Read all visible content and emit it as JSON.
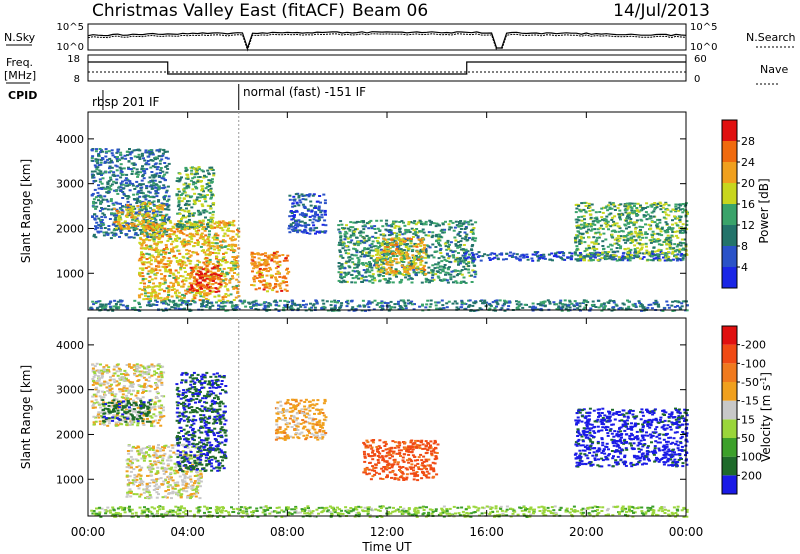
{
  "header": {
    "title": "Christmas Valley East (fitACF)",
    "beam": "Beam 06",
    "date": "14/Jul/2013"
  },
  "top_panels": {
    "nsky_label": "N.Sky",
    "nsearch_label": "N.Search",
    "count_ticks_left": [
      "10^5",
      "10^0"
    ],
    "count_ticks_right": [
      "10^5",
      "10^0"
    ],
    "freq_label_1": "Freq.",
    "freq_label_2": "[MHz]",
    "freq_ticks": [
      "18",
      "8"
    ],
    "nave_label": "Nave",
    "nave_ticks": [
      "60",
      "0"
    ],
    "cpid_label": "CPID",
    "cpid_modes": [
      "rbsp 201 IF",
      "normal (fast) -151 IF"
    ],
    "cpid_switch_hours": [
      0.6,
      6.05
    ]
  },
  "chart_data": [
    {
      "type": "heatmap",
      "name": "power",
      "ylabel": "Slant Range [km]",
      "ylim": [
        180,
        4600
      ],
      "xlim": [
        0,
        24
      ],
      "yticks": [
        1000,
        2000,
        3000,
        4000
      ],
      "colorbar": {
        "label": "Power [dB]",
        "ticks": [
          4,
          8,
          12,
          16,
          20,
          24,
          28
        ],
        "levels": [
          0,
          4,
          8,
          12,
          16,
          20,
          24,
          28,
          32
        ],
        "colors": [
          "#1a26e6",
          "#2a52c8",
          "#23736a",
          "#3aa36a",
          "#c8d61e",
          "#f0a01e",
          "#f06a0e",
          "#e01010"
        ]
      },
      "regions": [
        {
          "t": [
            0.1,
            3.2
          ],
          "r": [
            1800,
            3800
          ],
          "v": 9
        },
        {
          "t": [
            1.0,
            3.0
          ],
          "r": [
            2000,
            2600
          ],
          "v": 20
        },
        {
          "t": [
            2.0,
            6.0
          ],
          "r": [
            400,
            2200
          ],
          "v": 20
        },
        {
          "t": [
            3.5,
            5.0
          ],
          "r": [
            2000,
            3400
          ],
          "v": 14
        },
        {
          "t": [
            4.0,
            5.3
          ],
          "r": [
            600,
            1200
          ],
          "v": 28
        },
        {
          "t": [
            6.5,
            8.0
          ],
          "r": [
            600,
            1500
          ],
          "v": 24
        },
        {
          "t": [
            8.0,
            9.5
          ],
          "r": [
            1900,
            2800
          ],
          "v": 6
        },
        {
          "t": [
            10.0,
            15.5
          ],
          "r": [
            800,
            2200
          ],
          "v": 12
        },
        {
          "t": [
            11.5,
            13.5
          ],
          "r": [
            1000,
            1800
          ],
          "v": 20
        },
        {
          "t": [
            15.0,
            24.0
          ],
          "r": [
            1300,
            1500
          ],
          "v": 6
        },
        {
          "t": [
            19.5,
            24.0
          ],
          "r": [
            1300,
            2600
          ],
          "v": 14
        },
        {
          "t": [
            0.0,
            24.0
          ],
          "r": [
            180,
            420
          ],
          "v": 10
        }
      ]
    },
    {
      "type": "heatmap",
      "name": "velocity",
      "ylabel": "Slant Range [km]",
      "xlabel": "Time UT",
      "ylim": [
        180,
        4600
      ],
      "xlim": [
        0,
        24
      ],
      "yticks": [
        1000,
        2000,
        3000,
        4000
      ],
      "xticks": [
        "00:00",
        "04:00",
        "08:00",
        "12:00",
        "16:00",
        "20:00",
        "00:00"
      ],
      "colorbar": {
        "label": "Velocity [m s^-1]",
        "ticks": [
          200,
          100,
          50,
          15,
          -15,
          -50,
          -100,
          -200
        ],
        "levels": [
          250,
          200,
          100,
          50,
          15,
          -15,
          -50,
          -100,
          -200,
          -250
        ],
        "colors": [
          "#1a1ae6",
          "#1e6a2a",
          "#3ca02a",
          "#9ad63a",
          "#c8c8c8",
          "#f0a01e",
          "#f07a1e",
          "#f04a14",
          "#e01010"
        ]
      },
      "regions": [
        {
          "t": [
            0.1,
            3.0
          ],
          "r": [
            2200,
            3600
          ],
          "v": 0
        },
        {
          "t": [
            0.5,
            2.5
          ],
          "r": [
            2300,
            2800
          ],
          "v": 180
        },
        {
          "t": [
            1.5,
            4.5
          ],
          "r": [
            600,
            1800
          ],
          "v": 0
        },
        {
          "t": [
            3.5,
            5.5
          ],
          "r": [
            1200,
            3400
          ],
          "v": 200
        },
        {
          "t": [
            7.5,
            9.5
          ],
          "r": [
            1900,
            2800
          ],
          "v": -30
        },
        {
          "t": [
            11.0,
            14.0
          ],
          "r": [
            1000,
            1900
          ],
          "v": -120
        },
        {
          "t": [
            19.5,
            24.0
          ],
          "r": [
            1300,
            2600
          ],
          "v": 220
        },
        {
          "t": [
            0.0,
            24.0
          ],
          "r": [
            180,
            420
          ],
          "v": 40
        }
      ]
    }
  ]
}
